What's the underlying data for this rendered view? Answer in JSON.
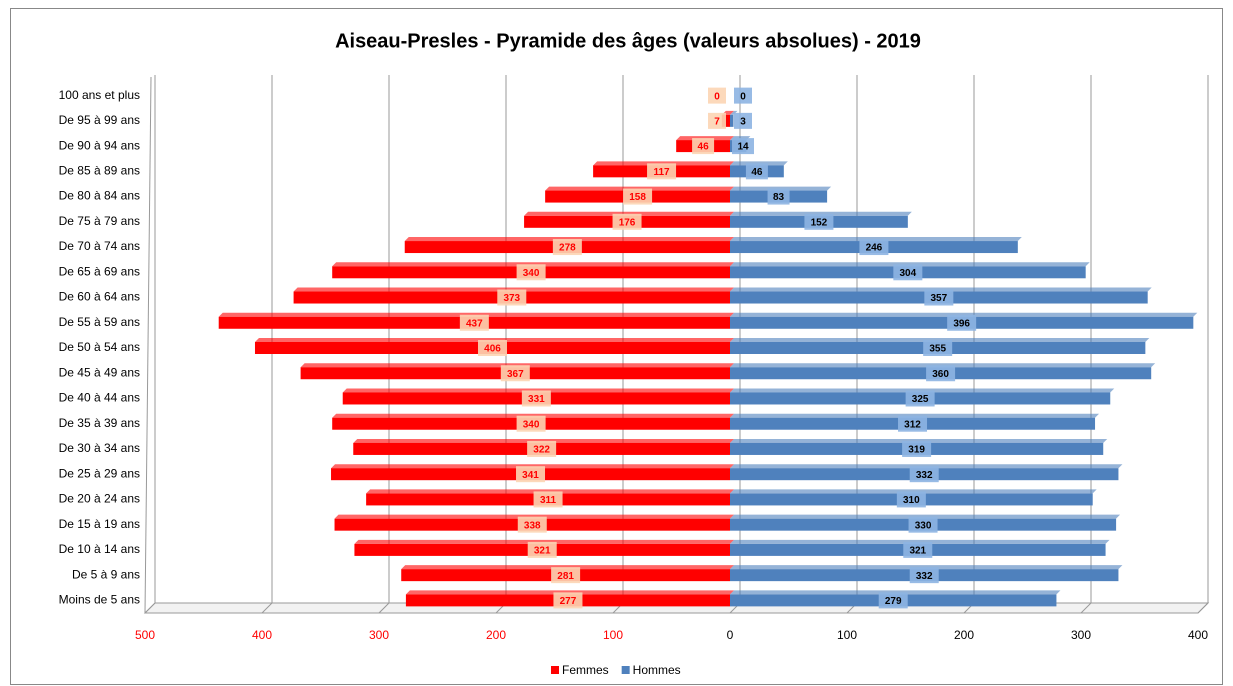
{
  "chart_data": {
    "type": "pyramid",
    "title": "Aiseau-Presles - Pyramide des âges  (valeurs absolues) - 2019",
    "categories": [
      "100 ans et plus",
      "De 95 à 99 ans",
      "De 90 à 94 ans",
      "De 85 à 89 ans",
      "De 80 à 84 ans",
      "De 75 à 79 ans",
      "De 70 à 74 ans",
      "De 65 à 69 ans",
      "De 60 à 64 ans",
      "De 55 à 59 ans",
      "De 50 à 54 ans",
      "De 45 à 49 ans",
      "De 40 à 44 ans",
      "De 35 à 39 ans",
      "De 30 à 34 ans",
      "De 25 à 29 ans",
      "De 20 à 24 ans",
      "De 15 à 19 ans",
      "De 10 à 14 ans",
      "De 5 à 9 ans",
      "Moins de 5 ans"
    ],
    "series": [
      {
        "name": "Femmes",
        "color": "#ff0000",
        "side": "left",
        "values": [
          0,
          7,
          46,
          117,
          158,
          176,
          278,
          340,
          373,
          437,
          406,
          367,
          331,
          340,
          322,
          341,
          311,
          338,
          321,
          281,
          277
        ]
      },
      {
        "name": "Hommes",
        "color": "#4f81bd",
        "side": "right",
        "values": [
          0,
          3,
          14,
          46,
          83,
          152,
          246,
          304,
          357,
          396,
          355,
          360,
          325,
          312,
          319,
          332,
          310,
          330,
          321,
          332,
          279
        ]
      }
    ],
    "xlim": [
      -500,
      400
    ],
    "xticks": [
      {
        "value": -500,
        "label": "500"
      },
      {
        "value": -400,
        "label": "400"
      },
      {
        "value": -300,
        "label": "300"
      },
      {
        "value": -200,
        "label": "200"
      },
      {
        "value": -100,
        "label": "100"
      },
      0,
      100,
      200,
      300,
      400
    ],
    "grid": true,
    "legend": "bottom"
  }
}
